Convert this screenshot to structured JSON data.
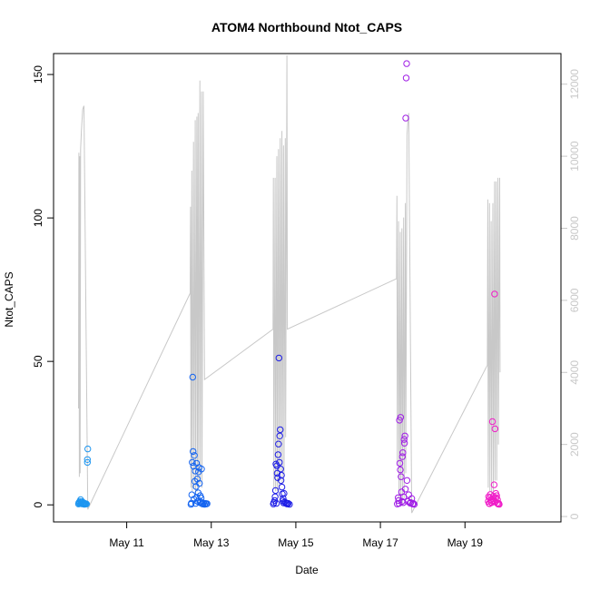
{
  "chart_data": {
    "type": "scatter",
    "title": "ATOM4 Northbound Ntot_CAPS",
    "xlabel": "Date",
    "ylabel": "Ntot_CAPS",
    "x_ticks": [
      "May 11",
      "May 13",
      "May 15",
      "May 17",
      "May 19"
    ],
    "x_tick_days": [
      11,
      13,
      15,
      17,
      19
    ],
    "xlim_days": [
      9.27,
      21.27
    ],
    "ylim": [
      -5.95,
      157.3
    ],
    "y_ticks": [
      0,
      50,
      100,
      150
    ],
    "y2lim": [
      -150,
      12850
    ],
    "y2_ticks": [
      0,
      2000,
      4000,
      6000,
      8000,
      10000,
      12000
    ],
    "colors": {
      "day_10": "#1e96f0",
      "day_12": "#1464f0",
      "day_14": "#1e1ee6",
      "day_17": "#a01ee6",
      "day_19": "#f01ec8",
      "line": "#c8c8c8",
      "secondary_axis": "#c8c8c8"
    },
    "series": [
      {
        "day": 10,
        "points": [
          [
            9.86,
            0.3
          ],
          [
            9.87,
            0.8
          ],
          [
            9.88,
            0.5
          ],
          [
            9.89,
            1.2
          ],
          [
            9.9,
            0.6
          ],
          [
            9.91,
            1.8
          ],
          [
            9.92,
            0.4
          ],
          [
            9.93,
            0.9
          ],
          [
            9.94,
            0.5
          ],
          [
            9.95,
            1.1
          ],
          [
            9.96,
            0.3
          ],
          [
            9.97,
            0.7
          ],
          [
            9.98,
            0.4
          ],
          [
            9.99,
            0.6
          ],
          [
            10.0,
            0.2
          ],
          [
            10.01,
            0.5
          ],
          [
            10.02,
            0.3
          ],
          [
            10.03,
            0.4
          ],
          [
            10.05,
            0.3
          ],
          [
            10.07,
            14.8
          ],
          [
            10.07,
            15.8
          ],
          [
            10.08,
            19.5
          ]
        ]
      },
      {
        "day": 12,
        "points": [
          [
            12.52,
            0.2
          ],
          [
            12.54,
            3.5
          ],
          [
            12.55,
            14.8
          ],
          [
            12.56,
            44.5
          ],
          [
            12.57,
            18.6
          ],
          [
            12.58,
            13.5
          ],
          [
            12.6,
            17.2
          ],
          [
            12.61,
            8.2
          ],
          [
            12.62,
            11.8
          ],
          [
            12.63,
            0.5
          ],
          [
            12.64,
            6.4
          ],
          [
            12.65,
            14.5
          ],
          [
            12.66,
            2.6
          ],
          [
            12.67,
            9.0
          ],
          [
            12.68,
            1.2
          ],
          [
            12.7,
            11.5
          ],
          [
            12.71,
            13.0
          ],
          [
            12.72,
            7.5
          ],
          [
            12.74,
            3.2
          ],
          [
            12.75,
            1.0
          ],
          [
            12.77,
            12.5
          ],
          [
            12.78,
            0.4
          ],
          [
            12.8,
            0.3
          ],
          [
            12.82,
            0.6
          ],
          [
            12.84,
            0.2
          ],
          [
            12.86,
            0.5
          ],
          [
            12.88,
            0.3
          ],
          [
            12.9,
            0.4
          ],
          [
            12.53,
            0.6
          ],
          [
            12.59,
            2.0
          ],
          [
            12.69,
            4.2
          ],
          [
            12.73,
            0.8
          ],
          [
            12.76,
            2.4
          ]
        ]
      },
      {
        "day": 14,
        "points": [
          [
            14.47,
            0.3
          ],
          [
            14.5,
            1.5
          ],
          [
            14.52,
            5.0
          ],
          [
            14.53,
            14.2
          ],
          [
            14.55,
            13.6
          ],
          [
            14.56,
            11.0
          ],
          [
            14.57,
            9.5
          ],
          [
            14.58,
            17.5
          ],
          [
            14.59,
            21.2
          ],
          [
            14.6,
            51.2
          ],
          [
            14.61,
            14.8
          ],
          [
            14.62,
            24.0
          ],
          [
            14.63,
            26.2
          ],
          [
            14.64,
            12.5
          ],
          [
            14.65,
            8.5
          ],
          [
            14.66,
            10.3
          ],
          [
            14.67,
            6.2
          ],
          [
            14.68,
            3.8
          ],
          [
            14.7,
            2.2
          ],
          [
            14.72,
            4.0
          ],
          [
            14.74,
            1.0
          ],
          [
            14.76,
            0.6
          ],
          [
            14.78,
            0.4
          ],
          [
            14.8,
            0.3
          ],
          [
            14.82,
            0.5
          ],
          [
            14.85,
            0.2
          ],
          [
            14.48,
            0.8
          ],
          [
            14.51,
            2.8
          ],
          [
            14.54,
            0.5
          ],
          [
            14.69,
            1.4
          ],
          [
            14.71,
            0.7
          ]
        ]
      },
      {
        "day": 17,
        "points": [
          [
            17.4,
            0.3
          ],
          [
            17.43,
            1.5
          ],
          [
            17.45,
            29.5
          ],
          [
            17.46,
            14.5
          ],
          [
            17.47,
            12.2
          ],
          [
            17.48,
            30.5
          ],
          [
            17.49,
            9.8
          ],
          [
            17.5,
            4.5
          ],
          [
            17.52,
            16.8
          ],
          [
            17.53,
            18.2
          ],
          [
            17.54,
            0.8
          ],
          [
            17.56,
            22.8
          ],
          [
            17.57,
            21.5
          ],
          [
            17.58,
            24.0
          ],
          [
            17.59,
            5.5
          ],
          [
            17.6,
            134.8
          ],
          [
            17.61,
            148.8
          ],
          [
            17.62,
            153.8
          ],
          [
            17.63,
            8.5
          ],
          [
            17.65,
            1.2
          ],
          [
            17.67,
            3.5
          ],
          [
            17.7,
            0.6
          ],
          [
            17.72,
            0.8
          ],
          [
            17.74,
            2.2
          ],
          [
            17.76,
            0.3
          ],
          [
            17.78,
            0.5
          ],
          [
            17.8,
            0.2
          ],
          [
            17.42,
            2.5
          ],
          [
            17.44,
            0.5
          ],
          [
            17.51,
            1.2
          ],
          [
            17.55,
            2.8
          ]
        ]
      },
      {
        "day": 19,
        "points": [
          [
            19.55,
            1.2
          ],
          [
            19.57,
            0.5
          ],
          [
            19.59,
            2.5
          ],
          [
            19.61,
            1.8
          ],
          [
            19.63,
            0.8
          ],
          [
            19.65,
            29.0
          ],
          [
            19.66,
            2.2
          ],
          [
            19.67,
            3.0
          ],
          [
            19.68,
            1.5
          ],
          [
            19.69,
            7.0
          ],
          [
            19.7,
            73.5
          ],
          [
            19.71,
            26.5
          ],
          [
            19.72,
            1.0
          ],
          [
            19.73,
            4.0
          ],
          [
            19.74,
            2.5
          ],
          [
            19.75,
            3.2
          ],
          [
            19.76,
            0.6
          ],
          [
            19.77,
            1.8
          ],
          [
            19.78,
            0.3
          ],
          [
            19.79,
            0.4
          ],
          [
            19.8,
            0.5
          ],
          [
            19.81,
            0.2
          ],
          [
            19.56,
            2.8
          ],
          [
            19.58,
            0.4
          ],
          [
            19.6,
            3.6
          ],
          [
            19.62,
            0.9
          ],
          [
            19.64,
            1.4
          ]
        ]
      }
    ],
    "secondary_line": {
      "axis": "right",
      "points": [
        [
          9.86,
          3000
        ],
        [
          9.87,
          10100
        ],
        [
          9.88,
          1100
        ],
        [
          9.89,
          10000
        ],
        [
          9.9,
          1200
        ],
        [
          9.91,
          10200
        ],
        [
          9.93,
          10700
        ],
        [
          9.96,
          11300
        ],
        [
          9.99,
          11400
        ],
        [
          10.08,
          200
        ],
        [
          12.5,
          6200
        ],
        [
          12.51,
          8600
        ],
        [
          12.52,
          800
        ],
        [
          12.54,
          9600
        ],
        [
          12.55,
          700
        ],
        [
          12.58,
          10400
        ],
        [
          12.59,
          800
        ],
        [
          12.62,
          11000
        ],
        [
          12.63,
          600
        ],
        [
          12.66,
          11100
        ],
        [
          12.67,
          700
        ],
        [
          12.69,
          11200
        ],
        [
          12.7,
          900
        ],
        [
          12.73,
          12100
        ],
        [
          12.74,
          900
        ],
        [
          12.77,
          11800
        ],
        [
          12.78,
          800
        ],
        [
          12.81,
          11800
        ],
        [
          12.84,
          3800
        ],
        [
          14.46,
          5200
        ],
        [
          14.47,
          9400
        ],
        [
          14.48,
          800
        ],
        [
          14.51,
          9400
        ],
        [
          14.52,
          700
        ],
        [
          14.55,
          10000
        ],
        [
          14.56,
          700
        ],
        [
          14.59,
          10200
        ],
        [
          14.6,
          800
        ],
        [
          14.63,
          10500
        ],
        [
          14.64,
          1200
        ],
        [
          14.67,
          10700
        ],
        [
          14.68,
          900
        ],
        [
          14.71,
          10300
        ],
        [
          14.72,
          1100
        ],
        [
          14.75,
          10500
        ],
        [
          14.76,
          2200
        ],
        [
          14.79,
          12800
        ],
        [
          14.8,
          5200
        ],
        [
          17.38,
          6600
        ],
        [
          17.39,
          8900
        ],
        [
          17.4,
          1400
        ],
        [
          17.43,
          8200
        ],
        [
          17.44,
          500
        ],
        [
          17.47,
          7900
        ],
        [
          17.48,
          300
        ],
        [
          17.51,
          8000
        ],
        [
          17.52,
          300
        ],
        [
          17.55,
          8300
        ],
        [
          17.56,
          500
        ],
        [
          17.59,
          8700
        ],
        [
          17.6,
          1200
        ],
        [
          17.63,
          10600
        ],
        [
          17.66,
          11100
        ],
        [
          17.67,
          11200
        ],
        [
          17.74,
          100
        ],
        [
          19.53,
          4200
        ],
        [
          19.54,
          8800
        ],
        [
          19.55,
          800
        ],
        [
          19.58,
          8700
        ],
        [
          19.59,
          700
        ],
        [
          19.62,
          8200
        ],
        [
          19.63,
          600
        ],
        [
          19.66,
          8700
        ],
        [
          19.67,
          700
        ],
        [
          19.7,
          9300
        ],
        [
          19.71,
          1000
        ],
        [
          19.74,
          9300
        ],
        [
          19.75,
          1000
        ],
        [
          19.78,
          9400
        ],
        [
          19.79,
          2000
        ],
        [
          19.82,
          9400
        ],
        [
          19.83,
          4000
        ]
      ]
    }
  }
}
